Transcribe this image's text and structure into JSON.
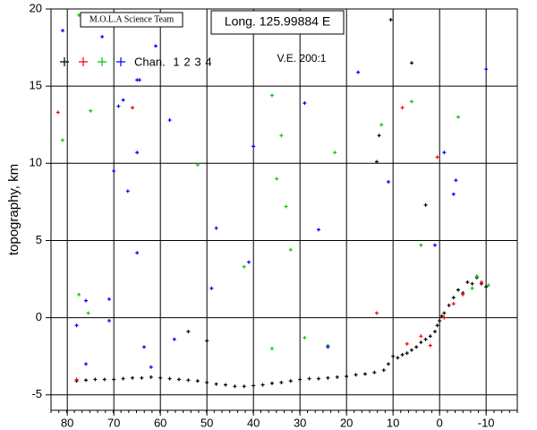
{
  "chart_data": {
    "type": "scatter",
    "ylabel": "topography, km",
    "annotations": [
      "M.O.L.A Science Team",
      "Long. 125.99884 E",
      "V.E. 200:1"
    ],
    "legend_label": "Chan.",
    "xlim": [
      83.5,
      -16.7
    ],
    "ylim": [
      -6,
      20
    ],
    "xticks": [
      80,
      70,
      60,
      50,
      40,
      30,
      20,
      10,
      0,
      -10
    ],
    "yticks": [
      20,
      15,
      10,
      5,
      0,
      -5
    ],
    "grid": true,
    "series": [
      {
        "name": "1",
        "color": "#000000",
        "x": [
          78,
          76,
          74,
          72,
          70,
          68,
          66,
          64,
          62,
          60,
          58,
          56,
          54,
          52,
          50,
          48,
          46,
          44,
          42,
          40,
          38,
          36,
          34,
          32,
          30,
          28,
          26,
          24,
          22,
          20,
          18,
          16,
          14,
          12,
          11,
          10,
          9,
          8,
          7,
          6,
          5,
          4,
          3,
          2,
          1,
          0.5,
          0,
          -0.5,
          -1,
          -2,
          -3,
          -4,
          -5,
          -6,
          -7,
          -8,
          -9,
          -10,
          10.5,
          6,
          13,
          13.5,
          3,
          54,
          50
        ],
        "y": [
          -4.1,
          -4.05,
          -4.0,
          -4.0,
          -4.0,
          -3.95,
          -3.9,
          -3.9,
          -3.85,
          -3.9,
          -3.95,
          -4.0,
          -4.05,
          -4.1,
          -4.2,
          -4.3,
          -4.35,
          -4.45,
          -4.45,
          -4.4,
          -4.35,
          -4.25,
          -4.2,
          -4.1,
          -4.0,
          -3.95,
          -3.95,
          -3.9,
          -3.85,
          -3.8,
          -3.7,
          -3.65,
          -3.55,
          -3.4,
          -3.0,
          -2.5,
          -2.6,
          -2.4,
          -2.3,
          -2.1,
          -1.9,
          -1.6,
          -1.4,
          -1.2,
          -0.9,
          -0.5,
          -0.2,
          0.1,
          0.3,
          0.8,
          1.3,
          1.8,
          1.6,
          2.3,
          2.2,
          2.6,
          2.2,
          2.0,
          19.3,
          16.5,
          11.8,
          10.1,
          7.3,
          -0.9,
          -1.5
        ]
      },
      {
        "name": "2",
        "color": "#ff0000",
        "x": [
          82,
          66,
          8,
          0.5,
          13.5,
          78,
          7,
          -1,
          2,
          -5,
          -9,
          4,
          -3
        ],
        "y": [
          13.3,
          13.6,
          13.6,
          10.4,
          0.3,
          -4.0,
          -1.7,
          0.0,
          -1.8,
          1.5,
          2.3,
          -1.2,
          0.9
        ]
      },
      {
        "name": "3",
        "color": "#00cc00",
        "x": [
          77.5,
          81,
          75,
          36,
          34,
          52,
          35,
          33,
          22.5,
          32,
          42,
          12.5,
          6,
          -4,
          4,
          77.5,
          75.5,
          29,
          24,
          36,
          -7,
          -8,
          -10.5
        ],
        "y": [
          19.6,
          11.5,
          13.4,
          14.4,
          11.8,
          9.9,
          9.0,
          7.2,
          10.7,
          4.4,
          3.3,
          12.5,
          14.0,
          13.0,
          4.7,
          1.5,
          0.3,
          -1.3,
          -1.8,
          -2.0,
          1.9,
          2.7,
          2.1
        ]
      },
      {
        "name": "4",
        "color": "#0000ff",
        "x": [
          81,
          72.5,
          61,
          65,
          64.5,
          69,
          68,
          58,
          65,
          70,
          67,
          40,
          29,
          17.5,
          11,
          -1,
          -3.5,
          -3,
          -10,
          48,
          65,
          49,
          78,
          76,
          71,
          71,
          57,
          63.5,
          76,
          62,
          41,
          26,
          1,
          24
        ],
        "y": [
          18.6,
          18.2,
          17.6,
          15.4,
          15.4,
          13.7,
          14.1,
          12.8,
          10.7,
          9.5,
          8.2,
          11.1,
          13.9,
          15.9,
          8.8,
          10.7,
          8.9,
          8.0,
          16.1,
          5.8,
          4.2,
          1.9,
          -0.5,
          1.1,
          1.2,
          -0.2,
          -1.4,
          -1.9,
          -3.0,
          -3.2,
          3.6,
          5.7,
          4.7,
          -1.9
        ]
      }
    ]
  }
}
